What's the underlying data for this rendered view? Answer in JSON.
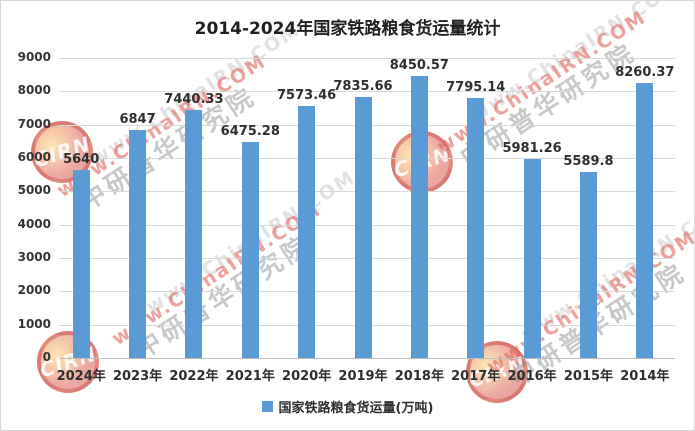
{
  "chart_data": {
    "type": "bar",
    "title": "2014-2024年国家铁路粮食货运量统计",
    "categories": [
      "2024年",
      "2023年",
      "2022年",
      "2021年",
      "2020年",
      "2019年",
      "2018年",
      "2017年",
      "2016年",
      "2015年",
      "2014年"
    ],
    "values": [
      5640,
      6847,
      7440.33,
      6475.28,
      7573.46,
      7835.66,
      8450.57,
      7795.14,
      5981.26,
      5589.8,
      8260.37
    ],
    "value_labels": [
      "5640",
      "6847",
      "7440.33",
      "6475.28",
      "7573.46",
      "7835.66",
      "8450.57",
      "7795.14",
      "5981.26",
      "5589.8",
      "8260.37"
    ],
    "xlabel": "",
    "ylabel": "",
    "ylim": [
      0,
      9000
    ],
    "ytick_interval": 1000,
    "yticks": [
      "0",
      "1000",
      "2000",
      "3000",
      "4000",
      "5000",
      "6000",
      "7000",
      "8000",
      "9000"
    ],
    "grid": true,
    "bar_color": "#5B9BD5",
    "legend_position": "bottom",
    "legend": [
      "国家铁路粮食货运量(万吨)"
    ]
  },
  "legend": {
    "label": "国家铁路粮食货运量(万吨)",
    "swatch_color": "#5B9BD5"
  },
  "watermark": {
    "site_text": "www.ChinaIRN.COM",
    "org_text": "中研普华研究院",
    "badge_text": "CIRN"
  }
}
